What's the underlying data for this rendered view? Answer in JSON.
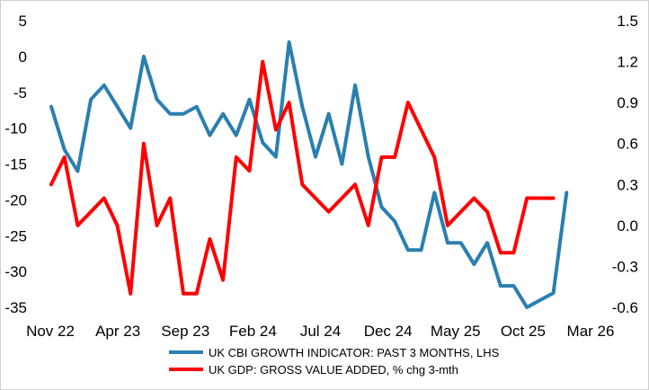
{
  "chart_data": {
    "type": "line",
    "title": "",
    "x_tick_labels": [
      "Nov 22",
      "Apr 23",
      "Sep 23",
      "Feb 24",
      "Jul 24",
      "Dec 24",
      "May 25",
      "Oct 25",
      "Mar 26"
    ],
    "x_range": [
      0,
      40
    ],
    "left_axis": {
      "ylim": [
        -35,
        5
      ],
      "ticks": [
        "5",
        "0",
        "-5",
        "-10",
        "-15",
        "-20",
        "-25",
        "-30",
        "-35"
      ],
      "tick_values": [
        5,
        0,
        -5,
        -10,
        -15,
        -20,
        -25,
        -30,
        -35
      ]
    },
    "right_axis": {
      "ylim": [
        -0.6,
        1.5
      ],
      "ticks": [
        "1.5",
        "1.2",
        "0.9",
        "0.6",
        "0.3",
        "0.0",
        "-0.3",
        "-0.6"
      ],
      "tick_values": [
        1.5,
        1.2,
        0.9,
        0.6,
        0.3,
        0.0,
        -0.3,
        -0.6
      ]
    },
    "series": [
      {
        "name": "UK CBI GROWTH INDICATOR: PAST 3 MONTHS, LHS",
        "axis": "left",
        "color": "#2a7fb0",
        "x": [
          0,
          1,
          2,
          3,
          4,
          5,
          6,
          7,
          8,
          9,
          10,
          11,
          12,
          13,
          14,
          15,
          16,
          17,
          18,
          19,
          20,
          21,
          22,
          23,
          24,
          25,
          26,
          27,
          28,
          29,
          30,
          31,
          32,
          33,
          34,
          35,
          36,
          37,
          38,
          39
        ],
        "values": [
          -7,
          -13,
          -16,
          -6,
          -4,
          -7,
          -10,
          0,
          -6,
          -8,
          -8,
          -7,
          -11,
          -8,
          -11,
          -6,
          -12,
          -14,
          2,
          -7,
          -14,
          -8,
          -15,
          -4,
          -14,
          -21,
          -23,
          -27,
          -27,
          -19,
          -26,
          -26,
          -29,
          -26,
          -32,
          -32,
          -35,
          -34,
          -33,
          -19
        ]
      },
      {
        "name": "UK GDP: GROSS VALUE ADDED, % chg 3-mth",
        "axis": "right",
        "color": "#ff0000",
        "x": [
          0,
          1,
          2,
          3,
          4,
          5,
          6,
          7,
          8,
          9,
          10,
          11,
          12,
          13,
          14,
          15,
          16,
          17,
          18,
          19,
          20,
          21,
          22,
          23,
          24,
          25,
          26,
          27,
          28,
          29,
          30,
          31,
          32,
          33,
          34,
          35,
          36,
          37,
          38
        ],
        "values": [
          0.3,
          0.5,
          0.0,
          0.1,
          0.2,
          0.0,
          -0.5,
          0.6,
          0.0,
          0.2,
          -0.5,
          -0.5,
          -0.1,
          -0.4,
          0.5,
          0.4,
          1.2,
          0.7,
          0.9,
          0.3,
          0.2,
          0.1,
          0.2,
          0.3,
          0.0,
          0.5,
          0.5,
          0.9,
          0.7,
          0.5,
          0.0,
          0.1,
          0.2,
          0.1,
          -0.2,
          -0.2,
          0.2,
          0.2,
          0.2
        ]
      }
    ],
    "legend_position": "bottom-center",
    "grid": false
  }
}
